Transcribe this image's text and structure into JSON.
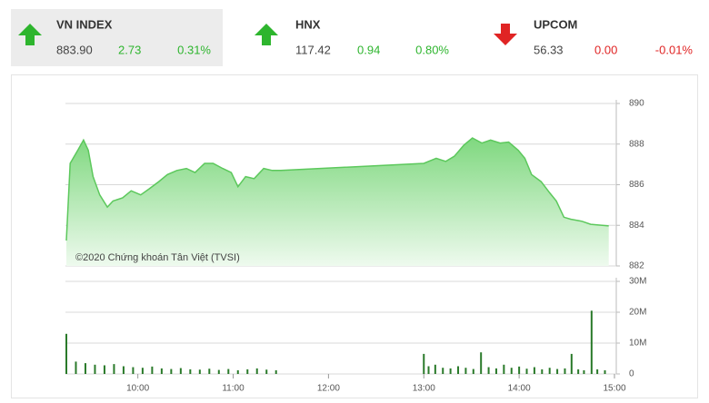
{
  "tickers": [
    {
      "name": "VN INDEX",
      "price": "883.90",
      "change": "2.73",
      "pct": "0.31%",
      "direction": "up",
      "color": "#2eb52e"
    },
    {
      "name": "HNX",
      "price": "117.42",
      "change": "0.94",
      "pct": "0.80%",
      "direction": "up",
      "color": "#2eb52e"
    },
    {
      "name": "UPCOM",
      "price": "56.33",
      "change": "0.00",
      "pct": "-0.01%",
      "direction": "down",
      "color": "#e02424"
    }
  ],
  "chart_data": [
    {
      "type": "area",
      "annotation": "©2020 Chứng khoán Tân Việt (TVSI)",
      "color": "#5cc85c",
      "x": [
        9.25,
        9.29,
        9.37,
        9.43,
        9.48,
        9.53,
        9.6,
        9.68,
        9.74,
        9.84,
        9.93,
        10.03,
        10.12,
        10.22,
        10.31,
        10.41,
        10.51,
        10.6,
        10.7,
        10.79,
        10.89,
        10.98,
        11.05,
        11.13,
        11.22,
        11.32,
        11.41,
        11.5,
        13.0,
        13.05,
        13.13,
        13.23,
        13.32,
        13.42,
        13.51,
        13.61,
        13.7,
        13.8,
        13.89,
        13.99,
        14.06,
        14.13,
        14.23,
        14.32,
        14.39,
        14.47,
        14.54,
        14.66,
        14.75,
        14.94
      ],
      "values": [
        883.25,
        887.05,
        887.7,
        888.2,
        887.7,
        886.4,
        885.5,
        884.9,
        885.2,
        885.35,
        885.7,
        885.5,
        885.8,
        886.15,
        886.5,
        886.7,
        886.8,
        886.6,
        887.05,
        887.05,
        886.8,
        886.6,
        885.9,
        886.4,
        886.3,
        886.8,
        886.7,
        886.7,
        887.05,
        887.15,
        887.3,
        887.15,
        887.4,
        887.95,
        888.3,
        888.05,
        888.2,
        888.05,
        888.1,
        887.7,
        887.3,
        886.5,
        886.15,
        885.6,
        885.2,
        884.4,
        884.3,
        884.2,
        884.05,
        883.97
      ],
      "xlim": [
        9.25,
        15
      ],
      "ylim": [
        882,
        890
      ],
      "yticks": [
        882,
        884,
        886,
        888,
        890
      ],
      "grid": true
    },
    {
      "type": "bar",
      "color": "#2a7a2a",
      "x": [
        9.25,
        9.35,
        9.45,
        9.55,
        9.65,
        9.75,
        9.85,
        9.95,
        10.05,
        10.15,
        10.25,
        10.35,
        10.45,
        10.55,
        10.65,
        10.75,
        10.85,
        10.95,
        11.05,
        11.15,
        11.25,
        11.35,
        11.45,
        13.0,
        13.05,
        13.12,
        13.2,
        13.28,
        13.36,
        13.44,
        13.52,
        13.6,
        13.68,
        13.76,
        13.84,
        13.92,
        14.0,
        14.08,
        14.16,
        14.24,
        14.32,
        14.4,
        14.48,
        14.55,
        14.62,
        14.68,
        14.76,
        14.82,
        14.9
      ],
      "values": [
        13,
        4,
        3.5,
        3,
        2.8,
        3.2,
        2.5,
        2.2,
        2,
        2.4,
        1.8,
        1.6,
        1.9,
        1.5,
        1.4,
        1.7,
        1.3,
        1.6,
        1.2,
        1.5,
        1.8,
        1.4,
        1.2,
        6.5,
        2.5,
        3,
        2,
        1.8,
        2.5,
        2,
        1.6,
        7,
        2.2,
        1.8,
        3,
        2,
        2.4,
        1.7,
        2.2,
        1.5,
        2,
        1.6,
        1.8,
        6.5,
        1.5,
        1.2,
        20.5,
        1.5,
        1.2
      ],
      "xlim": [
        9.25,
        15
      ],
      "xticks": [
        {
          "value": 10,
          "label": "10:00"
        },
        {
          "value": 11,
          "label": "11:00"
        },
        {
          "value": 12,
          "label": "12:00"
        },
        {
          "value": 13,
          "label": "13:00"
        },
        {
          "value": 14,
          "label": "14:00"
        },
        {
          "value": 15,
          "label": "15:00"
        }
      ],
      "ylim": [
        0,
        30
      ],
      "yticks": [
        0,
        {
          "value": 10,
          "label": "10M"
        },
        {
          "value": 20,
          "label": "20M"
        },
        {
          "value": 30,
          "label": "30M"
        }
      ],
      "grid": true
    }
  ]
}
